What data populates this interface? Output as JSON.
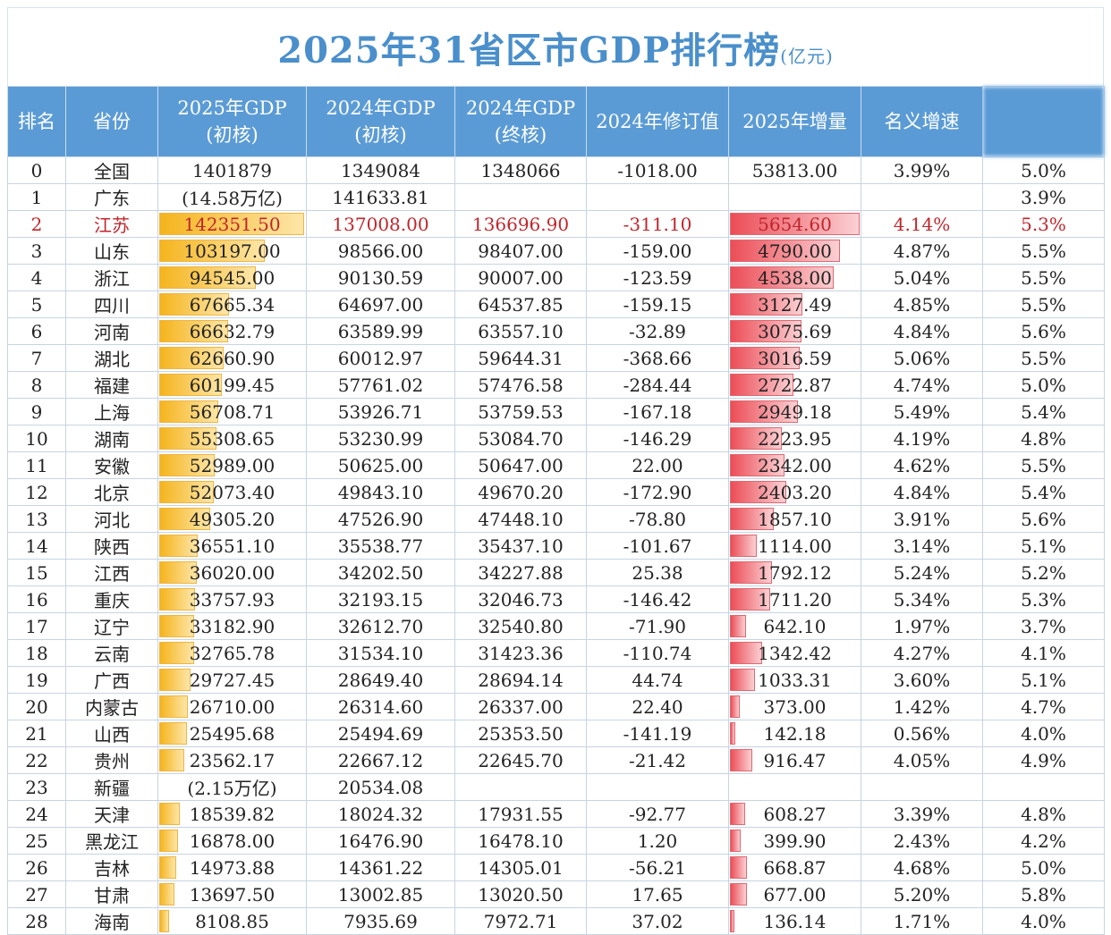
{
  "title": "2025年31省区市GDP排行榜",
  "unit": "(亿元)",
  "headers": [
    "排名",
    "省份",
    "2025年GDP\n(初核)",
    "2024年GDP\n(初核)",
    "2024年GDP\n(终核)",
    "2024年修订值",
    "2025年增量",
    "名义增速",
    ""
  ],
  "highlight_rank": "2",
  "colors": {
    "header_bg": "#5b9bd5",
    "title": "#4a8fcb",
    "gdp_bar": "#f5b41d",
    "increase_bar": "#ec4d57",
    "highlight_text": "#c0262d"
  },
  "rows": [
    [
      "0",
      "全国",
      "1401879",
      "1349084",
      "1348066",
      "-1018.00",
      "53813.00",
      "3.99%",
      "5.0%"
    ],
    [
      "1",
      "广东",
      "(14.58万亿)",
      "141633.81",
      "",
      "",
      "",
      "",
      "3.9%"
    ],
    [
      "2",
      "江苏",
      "142351.50",
      "137008.00",
      "136696.90",
      "-311.10",
      "5654.60",
      "4.14%",
      "5.3%"
    ],
    [
      "3",
      "山东",
      "103197.00",
      "98566.00",
      "98407.00",
      "-159.00",
      "4790.00",
      "4.87%",
      "5.5%"
    ],
    [
      "4",
      "浙江",
      "94545.00",
      "90130.59",
      "90007.00",
      "-123.59",
      "4538.00",
      "5.04%",
      "5.5%"
    ],
    [
      "5",
      "四川",
      "67665.34",
      "64697.00",
      "64537.85",
      "-159.15",
      "3127.49",
      "4.85%",
      "5.5%"
    ],
    [
      "6",
      "河南",
      "66632.79",
      "63589.99",
      "63557.10",
      "-32.89",
      "3075.69",
      "4.84%",
      "5.6%"
    ],
    [
      "7",
      "湖北",
      "62660.90",
      "60012.97",
      "59644.31",
      "-368.66",
      "3016.59",
      "5.06%",
      "5.5%"
    ],
    [
      "8",
      "福建",
      "60199.45",
      "57761.02",
      "57476.58",
      "-284.44",
      "2722.87",
      "4.74%",
      "5.0%"
    ],
    [
      "9",
      "上海",
      "56708.71",
      "53926.71",
      "53759.53",
      "-167.18",
      "2949.18",
      "5.49%",
      "5.4%"
    ],
    [
      "10",
      "湖南",
      "55308.65",
      "53230.99",
      "53084.70",
      "-146.29",
      "2223.95",
      "4.19%",
      "4.8%"
    ],
    [
      "11",
      "安徽",
      "52989.00",
      "50625.00",
      "50647.00",
      "22.00",
      "2342.00",
      "4.62%",
      "5.5%"
    ],
    [
      "12",
      "北京",
      "52073.40",
      "49843.10",
      "49670.20",
      "-172.90",
      "2403.20",
      "4.84%",
      "5.4%"
    ],
    [
      "13",
      "河北",
      "49305.20",
      "47526.90",
      "47448.10",
      "-78.80",
      "1857.10",
      "3.91%",
      "5.6%"
    ],
    [
      "14",
      "陕西",
      "36551.10",
      "35538.77",
      "35437.10",
      "-101.67",
      "1114.00",
      "3.14%",
      "5.1%"
    ],
    [
      "15",
      "江西",
      "36020.00",
      "34202.50",
      "34227.88",
      "25.38",
      "1792.12",
      "5.24%",
      "5.2%"
    ],
    [
      "16",
      "重庆",
      "33757.93",
      "32193.15",
      "32046.73",
      "-146.42",
      "1711.20",
      "5.34%",
      "5.3%"
    ],
    [
      "17",
      "辽宁",
      "33182.90",
      "32612.70",
      "32540.80",
      "-71.90",
      "642.10",
      "1.97%",
      "3.7%"
    ],
    [
      "18",
      "云南",
      "32765.78",
      "31534.10",
      "31423.36",
      "-110.74",
      "1342.42",
      "4.27%",
      "4.1%"
    ],
    [
      "19",
      "广西",
      "29727.45",
      "28649.40",
      "28694.14",
      "44.74",
      "1033.31",
      "3.60%",
      "5.1%"
    ],
    [
      "20",
      "内蒙古",
      "26710.00",
      "26314.60",
      "26337.00",
      "22.40",
      "373.00",
      "1.42%",
      "4.7%"
    ],
    [
      "21",
      "山西",
      "25495.68",
      "25494.69",
      "25353.50",
      "-141.19",
      "142.18",
      "0.56%",
      "4.0%"
    ],
    [
      "22",
      "贵州",
      "23562.17",
      "22667.12",
      "22645.70",
      "-21.42",
      "916.47",
      "4.05%",
      "4.9%"
    ],
    [
      "23",
      "新疆",
      "(2.15万亿)",
      "20534.08",
      "",
      "",
      "",
      "",
      ""
    ],
    [
      "24",
      "天津",
      "18539.82",
      "18024.32",
      "17931.55",
      "-92.77",
      "608.27",
      "3.39%",
      "4.8%"
    ],
    [
      "25",
      "黑龙江",
      "16878.00",
      "16476.90",
      "16478.10",
      "1.20",
      "399.90",
      "2.43%",
      "4.2%"
    ],
    [
      "26",
      "吉林",
      "14973.88",
      "14361.22",
      "14305.01",
      "-56.21",
      "668.87",
      "4.68%",
      "5.0%"
    ],
    [
      "27",
      "甘肃",
      "13697.50",
      "13002.85",
      "13020.50",
      "17.65",
      "677.00",
      "5.20%",
      "5.8%"
    ],
    [
      "28",
      "海南",
      "8108.85",
      "7935.69",
      "7972.71",
      "37.02",
      "136.14",
      "1.71%",
      "4.0%"
    ]
  ]
}
